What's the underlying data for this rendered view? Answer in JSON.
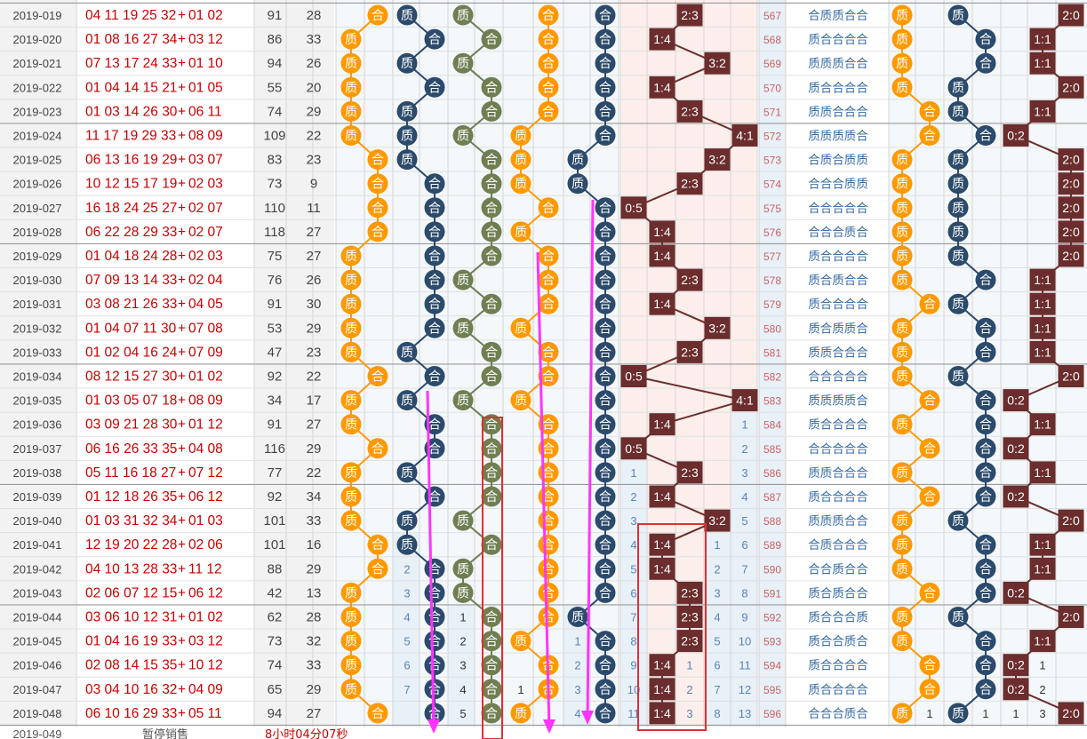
{
  "colors": {
    "orange": "#ff9900",
    "navy": "#2c4a6b",
    "olive": "#6f7f52",
    "brown": "#6b2d2d",
    "red": "#cc0000",
    "magenta": "#ff33ff",
    "num_blue": "#5a83b8",
    "cell_blue": "#e8f0f8",
    "cell_pink": "#fcefeb",
    "cell_grey": "#f2f2f2"
  },
  "labels": {
    "he": "合",
    "zhi": "质"
  },
  "rows": [
    {
      "issue": "2019-019",
      "nums": "04 11 19 25 32",
      "extra": "01 02",
      "sum": "91",
      "span": "28",
      "o": "合",
      "a": "质",
      "b": "质",
      "c": "合",
      "d": "合",
      "ratio": "2:3",
      "seq": "567",
      "pat": "合质质合合",
      "e": "质",
      "f": "质",
      "g": "2:0"
    },
    {
      "issue": "2019-020",
      "nums": "01 08 16 27 34",
      "extra": "03 12",
      "sum": "86",
      "span": "33",
      "o": "质",
      "a": "合",
      "b": "合",
      "c": "合",
      "d": "合",
      "ratio": "1:4",
      "seq": "568",
      "pat": "质合合合合",
      "e": "质",
      "f": "合",
      "g": "1:1"
    },
    {
      "issue": "2019-021",
      "nums": "07 13 17 24 33",
      "extra": "01 10",
      "sum": "94",
      "span": "26",
      "o": "质",
      "a": "质",
      "b": "质",
      "c": "合",
      "d": "合",
      "ratio": "3:2",
      "seq": "569",
      "pat": "质质质合合",
      "e": "质",
      "f": "合",
      "g": "1:1"
    },
    {
      "issue": "2019-022",
      "nums": "01 04 14 15 21",
      "extra": "01 05",
      "sum": "55",
      "span": "20",
      "o": "质",
      "a": "合",
      "b": "合",
      "c": "合",
      "d": "合",
      "ratio": "1:4",
      "seq": "570",
      "pat": "质合合合合",
      "e": "质",
      "f": "质",
      "g": "2:0"
    },
    {
      "issue": "2019-023",
      "nums": "01 03 14 26 30",
      "extra": "06 11",
      "sum": "74",
      "span": "29",
      "o": "质",
      "a": "质",
      "b": "合",
      "c": "合",
      "d": "合",
      "ratio": "2:3",
      "seq": "571",
      "pat": "质质合合合",
      "e": "合",
      "f": "质",
      "g": "1:1"
    },
    {
      "issue": "2019-024",
      "nums": "11 17 19 29 33",
      "extra": "08 09",
      "sum": "109",
      "span": "22",
      "o": "质",
      "a": "质",
      "b": "质",
      "c": "质",
      "d": "合",
      "ratio": "4:1",
      "seq": "572",
      "pat": "质质质质合",
      "e": "合",
      "f": "合",
      "g": "0:2"
    },
    {
      "issue": "2019-025",
      "nums": "06 13 16 19 29",
      "extra": "03 07",
      "sum": "83",
      "span": "23",
      "o": "合",
      "a": "质",
      "b": "合",
      "c": "质",
      "d": "质",
      "ratio": "3:2",
      "seq": "573",
      "pat": "合质合质质",
      "e": "质",
      "f": "质",
      "g": "2:0"
    },
    {
      "issue": "2019-026",
      "nums": "10 12 15 17 19",
      "extra": "02 03",
      "sum": "73",
      "span": "9",
      "o": "合",
      "a": "合",
      "b": "合",
      "c": "质",
      "d": "质",
      "ratio": "2:3",
      "seq": "574",
      "pat": "合合合质质",
      "e": "质",
      "f": "质",
      "g": "2:0"
    },
    {
      "issue": "2019-027",
      "nums": "16 18 24 25 27",
      "extra": "02 07",
      "sum": "110",
      "span": "11",
      "o": "合",
      "a": "合",
      "b": "合",
      "c": "合",
      "d": "合",
      "ratio": "0:5",
      "seq": "575",
      "pat": "合合合合合",
      "e": "质",
      "f": "质",
      "g": "2:0"
    },
    {
      "issue": "2019-028",
      "nums": "06 22 28 29 33",
      "extra": "02 07",
      "sum": "118",
      "span": "27",
      "o": "合",
      "a": "合",
      "b": "合",
      "c": "质",
      "d": "合",
      "ratio": "1:4",
      "seq": "576",
      "pat": "合合合质合",
      "e": "质",
      "f": "质",
      "g": "2:0"
    },
    {
      "issue": "2019-029",
      "nums": "01 04 18 24 28",
      "extra": "02 03",
      "sum": "75",
      "span": "27",
      "o": "质",
      "a": "合",
      "b": "合",
      "c": "合",
      "d": "合",
      "ratio": "1:4",
      "seq": "577",
      "pat": "质合合合合",
      "e": "质",
      "f": "质",
      "g": "2:0"
    },
    {
      "issue": "2019-030",
      "nums": "07 09 13 14 33",
      "extra": "02 04",
      "sum": "76",
      "span": "26",
      "o": "质",
      "a": "合",
      "b": "质",
      "c": "合",
      "d": "合",
      "ratio": "2:3",
      "seq": "578",
      "pat": "质合质合合",
      "e": "质",
      "f": "合",
      "g": "1:1"
    },
    {
      "issue": "2019-031",
      "nums": "03 08 21 26 33",
      "extra": "04 05",
      "sum": "91",
      "span": "30",
      "o": "质",
      "a": "合",
      "b": "合",
      "c": "合",
      "d": "合",
      "ratio": "1:4",
      "seq": "579",
      "pat": "质合合合合",
      "e": "合",
      "f": "质",
      "g": "1:1"
    },
    {
      "issue": "2019-032",
      "nums": "01 04 07 11 30",
      "extra": "07 08",
      "sum": "53",
      "span": "29",
      "o": "质",
      "a": "合",
      "b": "质",
      "c": "质",
      "d": "合",
      "ratio": "3:2",
      "seq": "580",
      "pat": "质合质质合",
      "e": "质",
      "f": "合",
      "g": "1:1"
    },
    {
      "issue": "2019-033",
      "nums": "01 02 04 16 24",
      "extra": "07 09",
      "sum": "47",
      "span": "23",
      "o": "质",
      "a": "质",
      "b": "合",
      "c": "合",
      "d": "合",
      "ratio": "2:3",
      "seq": "581",
      "pat": "质质合合合",
      "e": "质",
      "f": "合",
      "g": "1:1"
    },
    {
      "issue": "2019-034",
      "nums": "08 12 15 27 30",
      "extra": "01 02",
      "sum": "92",
      "span": "22",
      "o": "合",
      "a": "合",
      "b": "合",
      "c": "合",
      "d": "合",
      "ratio": "0:5",
      "seq": "582",
      "pat": "合合合合合",
      "e": "质",
      "f": "质",
      "g": "2:0"
    },
    {
      "issue": "2019-035",
      "nums": "01 03 05 07 18",
      "extra": "08 09",
      "sum": "34",
      "span": "17",
      "o": "质",
      "a": "质",
      "b": "质",
      "c": "质",
      "d": "合",
      "ratio": "4:1",
      "seq": "583",
      "pat": "质质质质合",
      "e": "合",
      "f": "合",
      "g": "0:2"
    },
    {
      "issue": "2019-036",
      "nums": "03 09 21 28 30",
      "extra": "01 12",
      "sum": "91",
      "span": "27",
      "o": "质",
      "a": "合",
      "b": "合",
      "c": "合",
      "d": "合",
      "ratio": "1:4",
      "seq": "584",
      "pat": "质合合合合",
      "e": "质",
      "f": "合",
      "g": "1:1"
    },
    {
      "issue": "2019-037",
      "nums": "06 16 26 33 35",
      "extra": "04 08",
      "sum": "116",
      "span": "29",
      "o": "合",
      "a": "合",
      "b": "合",
      "c": "合",
      "d": "合",
      "ratio": "0:5",
      "seq": "585",
      "pat": "合合合合合",
      "e": "合",
      "f": "合",
      "g": "0:2"
    },
    {
      "issue": "2019-038",
      "nums": "05 11 16 18 27",
      "extra": "07 12",
      "sum": "77",
      "span": "22",
      "o": "质",
      "a": "质",
      "b": "合",
      "c": "合",
      "d": "合",
      "ratio": "2:3",
      "seq": "586",
      "pat": "质质合合合",
      "e": "质",
      "f": "合",
      "g": "1:1"
    },
    {
      "issue": "2019-039",
      "nums": "01 12 18 26 35",
      "extra": "06 12",
      "sum": "92",
      "span": "34",
      "o": "质",
      "a": "合",
      "b": "合",
      "c": "合",
      "d": "合",
      "ratio": "1:4",
      "seq": "587",
      "pat": "质合合合合",
      "e": "合",
      "f": "合",
      "g": "0:2"
    },
    {
      "issue": "2019-040",
      "nums": "01 03 31 32 34",
      "extra": "01 03",
      "sum": "101",
      "span": "33",
      "o": "质",
      "a": "质",
      "b": "质",
      "c": "合",
      "d": "合",
      "ratio": "3:2",
      "seq": "588",
      "pat": "质质质合合",
      "e": "质",
      "f": "质",
      "g": "2:0"
    },
    {
      "issue": "2019-041",
      "nums": "12 19 20 22 28",
      "extra": "02 06",
      "sum": "101",
      "span": "16",
      "o": "合",
      "a": "质",
      "b": "合",
      "c": "合",
      "d": "合",
      "ratio": "1:4",
      "seq": "589",
      "pat": "合质合合合",
      "e": "质",
      "f": "合",
      "g": "1:1"
    },
    {
      "issue": "2019-042",
      "nums": "04 10 13 28 33",
      "extra": "11 12",
      "sum": "88",
      "span": "29",
      "o": "合",
      "a": "合",
      "b": "质",
      "c": "合",
      "d": "合",
      "ratio": "1:4",
      "seq": "590",
      "pat": "合合质合合",
      "e": "质",
      "f": "合",
      "g": "1:1"
    },
    {
      "issue": "2019-043",
      "nums": "02 06 07 12 15",
      "extra": "06 12",
      "sum": "42",
      "span": "13",
      "o": "质",
      "a": "合",
      "b": "质",
      "c": "合",
      "d": "合",
      "ratio": "2:3",
      "seq": "591",
      "pat": "质合质合合",
      "e": "合",
      "f": "合",
      "g": "0:2"
    },
    {
      "issue": "2019-044",
      "nums": "03 06 10 12 31",
      "extra": "01 02",
      "sum": "62",
      "span": "28",
      "o": "质",
      "a": "合",
      "b": "合",
      "c": "合",
      "d": "质",
      "ratio": "2:3",
      "seq": "592",
      "pat": "质合合合质",
      "e": "质",
      "f": "质",
      "g": "2:0"
    },
    {
      "issue": "2019-045",
      "nums": "01 04 16 19 33",
      "extra": "03 12",
      "sum": "73",
      "span": "32",
      "o": "质",
      "a": "合",
      "b": "合",
      "c": "质",
      "d": "合",
      "ratio": "2:3",
      "seq": "593",
      "pat": "质合合质合",
      "e": "质",
      "f": "合",
      "g": "1:1"
    },
    {
      "issue": "2019-046",
      "nums": "02 08 14 15 35",
      "extra": "10 12",
      "sum": "74",
      "span": "33",
      "o": "质",
      "a": "合",
      "b": "合",
      "c": "合",
      "d": "合",
      "ratio": "1:4",
      "seq": "594",
      "pat": "质合合合合",
      "e": "合",
      "f": "合",
      "g": "0:2"
    },
    {
      "issue": "2019-047",
      "nums": "03 04 10 16 32",
      "extra": "04 09",
      "sum": "65",
      "span": "29",
      "o": "质",
      "a": "合",
      "b": "合",
      "c": "合",
      "d": "合",
      "ratio": "1:4",
      "seq": "595",
      "pat": "质合合合合",
      "e": "合",
      "f": "合",
      "g": "0:2"
    },
    {
      "issue": "2019-048",
      "nums": "06 10 16 29 33",
      "extra": "05 11",
      "sum": "94",
      "span": "27",
      "o": "合",
      "a": "合",
      "b": "合",
      "c": "质",
      "d": "合",
      "ratio": "1:4",
      "seq": "596",
      "pat": "合合合质合",
      "e": "质",
      "f": "质",
      "g": "2:0"
    }
  ],
  "counters": {
    "o_zhi": [
      [
        28,
        "1"
      ]
    ],
    "a_he": [
      [
        22,
        "1"
      ],
      [
        23,
        "2"
      ],
      [
        24,
        "3"
      ],
      [
        25,
        "4"
      ],
      [
        26,
        "5"
      ],
      [
        27,
        "6"
      ],
      [
        28,
        "7"
      ]
    ],
    "b_zhi": [
      [
        25,
        "1"
      ],
      [
        26,
        "2"
      ],
      [
        27,
        "3"
      ],
      [
        28,
        "4"
      ],
      [
        29,
        "5"
      ]
    ],
    "c_he": [
      [
        28,
        "1"
      ]
    ],
    "d_zhi": [
      [
        26,
        "1"
      ],
      [
        27,
        "2"
      ],
      [
        28,
        "3"
      ],
      [
        29,
        "4"
      ]
    ],
    "r05": [
      [
        19,
        "1"
      ],
      [
        20,
        "2"
      ],
      [
        21,
        "3"
      ],
      [
        22,
        "4"
      ],
      [
        23,
        "5"
      ],
      [
        24,
        "6"
      ],
      [
        25,
        "7"
      ],
      [
        26,
        "8"
      ],
      [
        27,
        "9"
      ],
      [
        28,
        "10"
      ],
      [
        29,
        "11"
      ]
    ],
    "r23": [
      [
        27,
        "1"
      ],
      [
        28,
        "2"
      ],
      [
        29,
        "3"
      ]
    ],
    "r32": [
      [
        22,
        "1"
      ],
      [
        23,
        "2"
      ],
      [
        24,
        "3"
      ],
      [
        25,
        "4"
      ],
      [
        26,
        "5"
      ],
      [
        27,
        "6"
      ],
      [
        28,
        "7"
      ],
      [
        29,
        "8"
      ]
    ],
    "r41": [
      [
        17,
        "1"
      ],
      [
        18,
        "2"
      ],
      [
        19,
        "3"
      ],
      [
        20,
        "4"
      ],
      [
        21,
        "5"
      ],
      [
        22,
        "6"
      ],
      [
        23,
        "7"
      ],
      [
        24,
        "8"
      ],
      [
        25,
        "9"
      ],
      [
        26,
        "10"
      ],
      [
        27,
        "11"
      ],
      [
        28,
        "12"
      ],
      [
        29,
        "13"
      ]
    ],
    "e_he": [
      [
        29,
        "1"
      ]
    ],
    "f_he": [
      [
        29,
        "1"
      ]
    ],
    "g11": [
      [
        29,
        "1"
      ]
    ],
    "g02_a": [
      [
        27,
        "1"
      ],
      [
        28,
        "2"
      ],
      [
        29,
        "3"
      ]
    ]
  },
  "footer": {
    "issue": "2019-049",
    "status": "暂停销售",
    "countdown": "8小时04分07秒"
  }
}
